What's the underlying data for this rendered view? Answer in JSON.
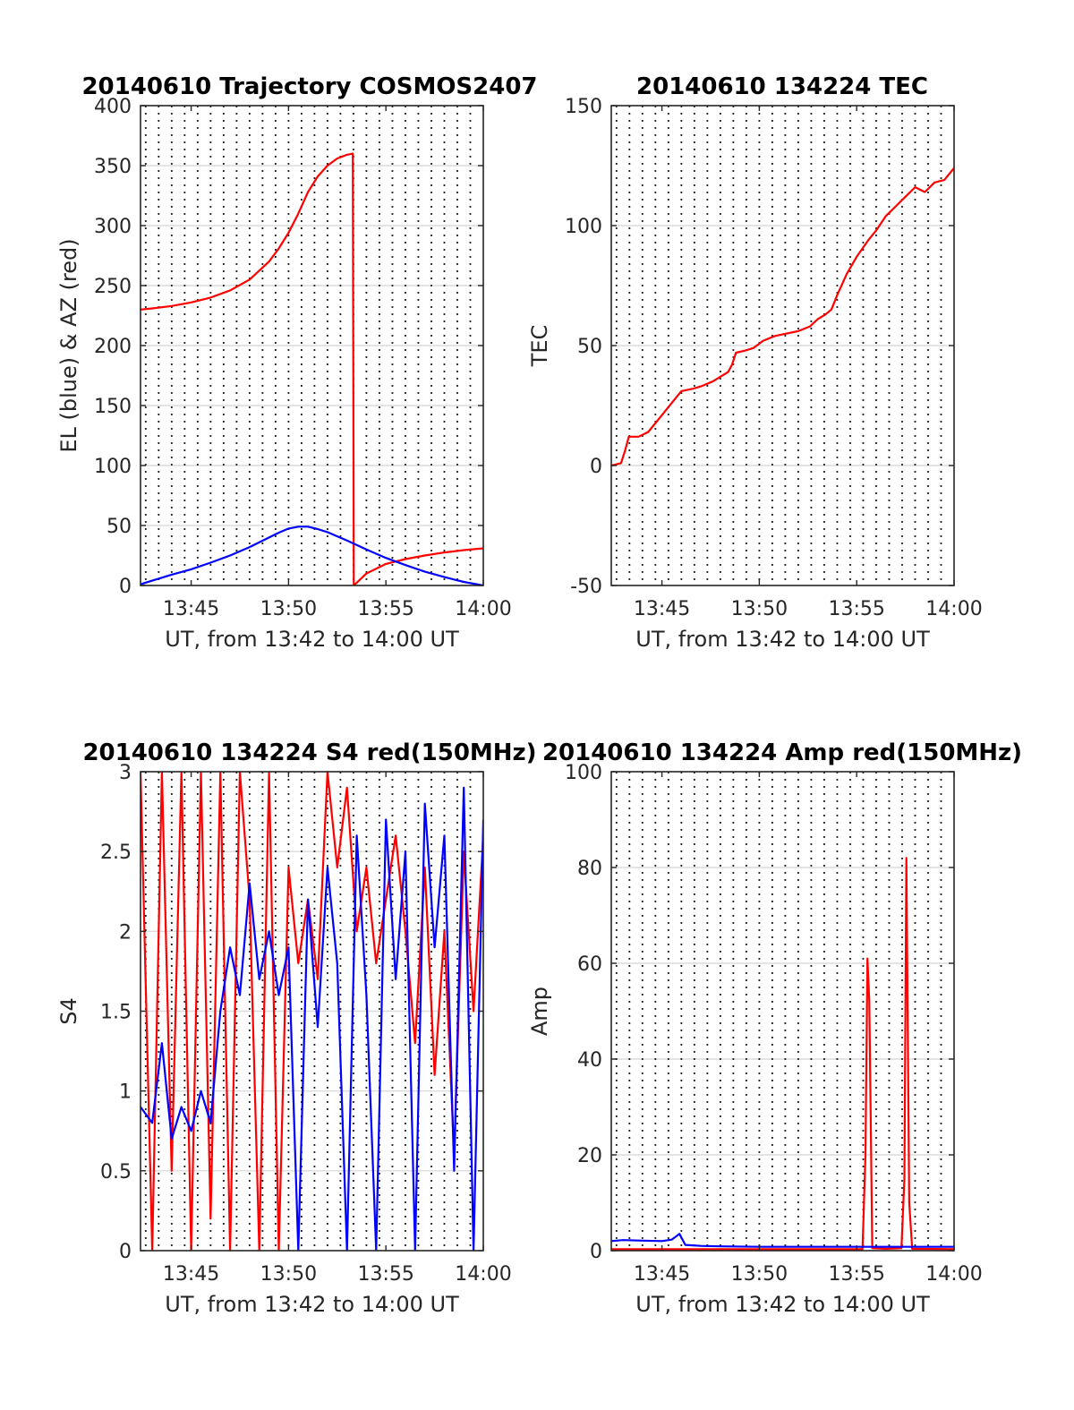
{
  "chart_data": [
    {
      "type": "line",
      "title": "20140610 Trajectory COSMOS2407",
      "xlabel": "UT, from 13:42 to 14:00 UT",
      "ylabel": "EL (blue) & AZ (red)",
      "xlim_minutes": [
        822.4,
        840
      ],
      "ylim": [
        0,
        400
      ],
      "yticks": [
        0,
        50,
        100,
        150,
        200,
        250,
        300,
        350,
        400
      ],
      "xticks": [
        {
          "value": 825,
          "label": "13:45"
        },
        {
          "value": 830,
          "label": "13:50"
        },
        {
          "value": 835,
          "label": "13:55"
        },
        {
          "value": 840,
          "label": "14:00"
        }
      ],
      "grid": true,
      "series": [
        {
          "color": "#ff0000",
          "x": [
            822.4,
            823,
            824,
            825,
            826,
            827,
            828,
            829,
            829.5,
            830,
            830.5,
            831,
            831.5,
            832,
            832.5,
            833,
            833.3,
            833.35,
            834,
            835,
            836,
            837,
            838,
            839,
            840
          ],
          "y": [
            230,
            231,
            233,
            236,
            240,
            246,
            255,
            270,
            281,
            294,
            310,
            328,
            341,
            350,
            356,
            359,
            360,
            0,
            10,
            18,
            22,
            25,
            27.5,
            29.5,
            31
          ]
        },
        {
          "color": "#0000ff",
          "x": [
            822.4,
            823,
            824,
            825,
            826,
            827,
            828,
            829,
            829.5,
            830,
            830.5,
            831,
            831.5,
            832,
            832.5,
            833,
            834,
            835,
            836,
            837,
            838,
            839,
            840
          ],
          "y": [
            1,
            4,
            9,
            13.5,
            19,
            25,
            32,
            40,
            44,
            47.5,
            49,
            49,
            47,
            44.5,
            41,
            37.5,
            30,
            23,
            17,
            11.5,
            7,
            3,
            0
          ]
        }
      ]
    },
    {
      "type": "line",
      "title": "20140610 134224 TEC",
      "xlabel": "UT, from 13:42 to 14:00 UT",
      "ylabel": "TEC",
      "xlim_minutes": [
        822.4,
        840
      ],
      "ylim": [
        -50,
        150
      ],
      "yticks": [
        -50,
        0,
        50,
        100,
        150
      ],
      "xticks": [
        {
          "value": 825,
          "label": "13:45"
        },
        {
          "value": 830,
          "label": "13:50"
        },
        {
          "value": 835,
          "label": "13:55"
        },
        {
          "value": 840,
          "label": "14:00"
        }
      ],
      "grid": true,
      "series": [
        {
          "color": "#ff0000",
          "x": [
            822.4,
            822.9,
            823.1,
            823.3,
            823.8,
            824.3,
            825,
            825.6,
            826,
            826.6,
            827,
            827.6,
            828,
            828.4,
            828.6,
            828.8,
            829.3,
            829.7,
            830.2,
            830.8,
            831.4,
            832,
            832.6,
            833,
            833.4,
            833.7,
            834,
            834.5,
            835,
            835.6,
            836,
            836.5,
            837,
            837.5,
            838,
            838.5,
            839,
            839.5,
            840
          ],
          "y": [
            0,
            1,
            6,
            12,
            12,
            14,
            21,
            27,
            31,
            32,
            33,
            35,
            37,
            39,
            42,
            47,
            48,
            49,
            52,
            54,
            55,
            56,
            58,
            61,
            63,
            65,
            71,
            80,
            87,
            94,
            98,
            104,
            108,
            112,
            116,
            114,
            118,
            119,
            124
          ]
        }
      ]
    },
    {
      "type": "line",
      "title": "20140610 134224 S4 red(150MHz)",
      "xlabel": "UT, from 13:42 to 14:00 UT",
      "ylabel": "S4",
      "xlim_minutes": [
        822.4,
        840
      ],
      "ylim": [
        0,
        3
      ],
      "yticks": [
        0,
        0.5,
        1,
        1.5,
        2,
        2.5,
        3
      ],
      "xticks": [
        {
          "value": 825,
          "label": "13:45"
        },
        {
          "value": 830,
          "label": "13:50"
        },
        {
          "value": 835,
          "label": "13:55"
        },
        {
          "value": 840,
          "label": "14:00"
        }
      ],
      "grid": true,
      "series": [
        {
          "color": "#ff0000",
          "x": [
            822.4,
            823,
            823.5,
            824,
            824.5,
            825,
            825.5,
            826,
            826.5,
            827,
            827.5,
            828,
            828.5,
            829,
            829.5,
            830,
            830.5,
            831,
            831.5,
            832,
            832.5,
            833,
            833.5,
            834,
            834.5,
            835,
            835.5,
            836,
            836.5,
            837,
            837.5,
            838,
            838.5,
            839,
            839.5,
            840
          ],
          "y": [
            3,
            0,
            3,
            0.5,
            3,
            0,
            3,
            0.2,
            3,
            0,
            3,
            2.2,
            0,
            3,
            0,
            2.4,
            1.8,
            2.2,
            1.7,
            3,
            2.4,
            2.9,
            2,
            2.4,
            1.8,
            2.2,
            2.6,
            2,
            1.3,
            2.4,
            1.1,
            2.0,
            0.6,
            2.5,
            1.5,
            2.6
          ]
        },
        {
          "color": "#0000ff",
          "x": [
            822.4,
            823,
            823.5,
            824,
            824.5,
            825,
            825.5,
            826,
            826.5,
            827,
            827.5,
            828,
            828.5,
            829,
            829.5,
            830,
            830.5,
            831,
            831.5,
            832,
            832.5,
            833,
            833.5,
            834,
            834.5,
            835,
            835.5,
            836,
            836.5,
            837,
            837.5,
            838,
            838.5,
            839,
            839.5,
            840
          ],
          "y": [
            0.9,
            0.8,
            1.3,
            0.7,
            0.9,
            0.75,
            1.0,
            0.8,
            1.5,
            1.9,
            1.6,
            2.3,
            1.7,
            2.0,
            1.6,
            1.9,
            0,
            2.2,
            1.4,
            2.4,
            1.8,
            0,
            2.6,
            1.6,
            0,
            2.7,
            1.7,
            2.5,
            0,
            2.8,
            1.9,
            2.6,
            0.5,
            2.9,
            0,
            2.7
          ]
        }
      ]
    },
    {
      "type": "line",
      "title": "20140610 134224 Amp red(150MHz)",
      "xlabel": "UT, from 13:42 to 14:00 UT",
      "ylabel": "Amp",
      "xlim_minutes": [
        822.4,
        840
      ],
      "ylim": [
        0,
        100
      ],
      "yticks": [
        0,
        20,
        40,
        60,
        80,
        100
      ],
      "xticks": [
        {
          "value": 825,
          "label": "13:45"
        },
        {
          "value": 830,
          "label": "13:50"
        },
        {
          "value": 835,
          "label": "13:55"
        },
        {
          "value": 840,
          "label": "14:00"
        }
      ],
      "grid": true,
      "series": [
        {
          "color": "#ff0000",
          "x": [
            822.4,
            835.3,
            835.45,
            835.55,
            835.65,
            835.8,
            836.5,
            837.3,
            837.45,
            837.55,
            837.7,
            837.85,
            840
          ],
          "y": [
            0.3,
            0.3,
            20,
            61,
            52,
            0.5,
            0.4,
            0.5,
            15,
            82,
            10,
            0.4,
            0.3
          ]
        },
        {
          "color": "#0000ff",
          "x": [
            822.4,
            823,
            824,
            825,
            825.5,
            825.9,
            826.2,
            827,
            828,
            830,
            832,
            834,
            836,
            838,
            840
          ],
          "y": [
            2,
            2.2,
            2.1,
            2,
            2.3,
            3.5,
            1.2,
            1,
            0.9,
            0.8,
            0.8,
            0.8,
            0.8,
            0.8,
            0.8
          ]
        }
      ]
    }
  ]
}
